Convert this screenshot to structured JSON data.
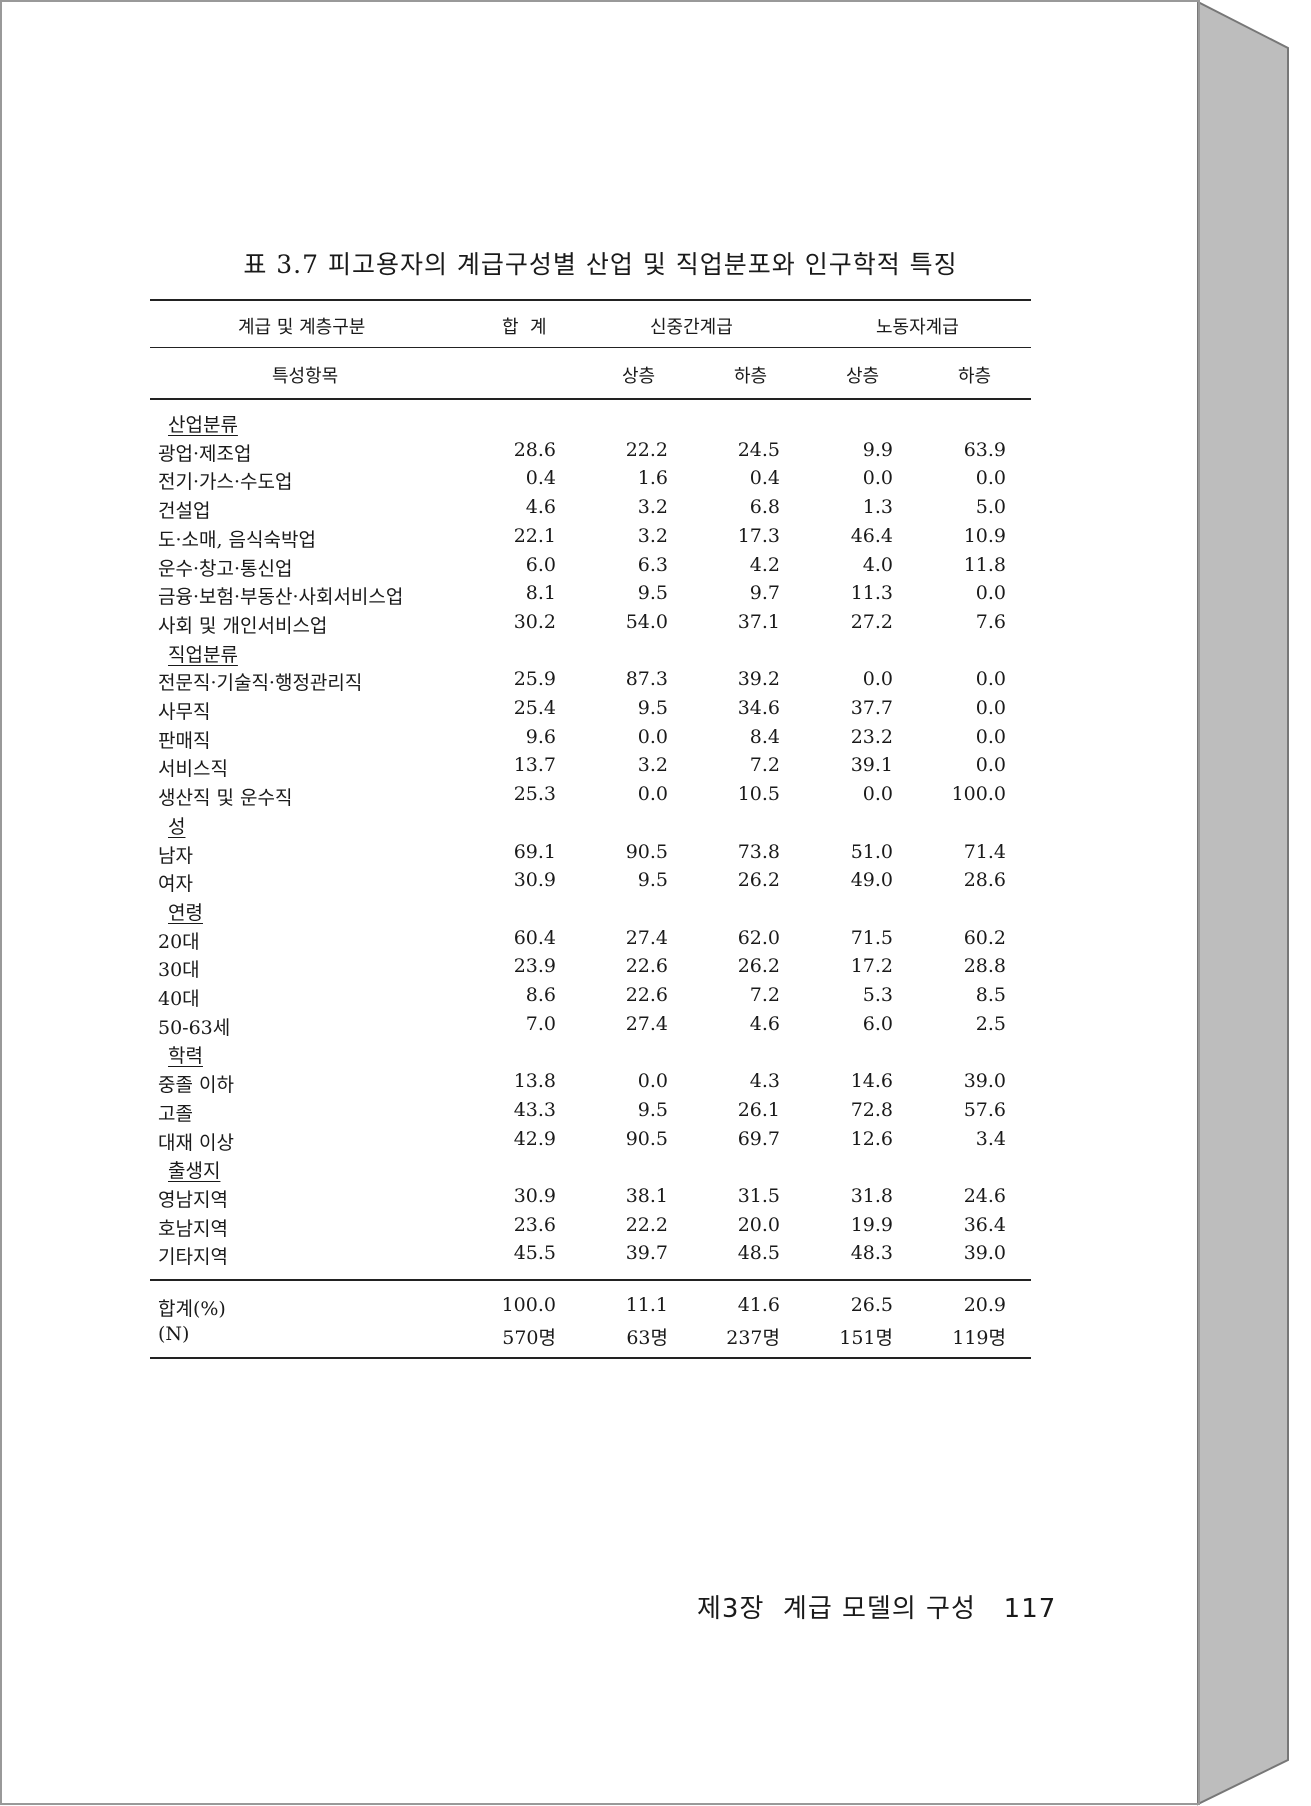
{
  "title": "표 3.7  피고용자의 계급구성별 산업 및 직업분포와 인구학적 특징",
  "header": {
    "row1": {
      "label": "계급 및 계층구분",
      "total": "합  계",
      "group1": "신중간계급",
      "group2": "노동자계급"
    },
    "row2": {
      "label": "특성항목",
      "sub": [
        "상층",
        "하층",
        "상층",
        "하층"
      ]
    }
  },
  "rows": [
    {
      "section": "산업분류"
    },
    {
      "label": "광업·제조업",
      "values": [
        "28.6",
        "22.2",
        "24.5",
        "9.9",
        "63.9"
      ]
    },
    {
      "label": "전기·가스·수도업",
      "values": [
        "0.4",
        "1.6",
        "0.4",
        "0.0",
        "0.0"
      ]
    },
    {
      "label": "건설업",
      "values": [
        "4.6",
        "3.2",
        "6.8",
        "1.3",
        "5.0"
      ]
    },
    {
      "label": "도·소매, 음식숙박업",
      "values": [
        "22.1",
        "3.2",
        "17.3",
        "46.4",
        "10.9"
      ]
    },
    {
      "label": "운수·창고·통신업",
      "values": [
        "6.0",
        "6.3",
        "4.2",
        "4.0",
        "11.8"
      ]
    },
    {
      "label": "금융·보험·부동산·사회서비스업",
      "values": [
        "8.1",
        "9.5",
        "9.7",
        "11.3",
        "0.0"
      ]
    },
    {
      "label": "사회 및 개인서비스업",
      "values": [
        "30.2",
        "54.0",
        "37.1",
        "27.2",
        "7.6"
      ]
    },
    {
      "section": "직업분류"
    },
    {
      "label": "전문직·기술직·행정관리직",
      "values": [
        "25.9",
        "87.3",
        "39.2",
        "0.0",
        "0.0"
      ]
    },
    {
      "label": "사무직",
      "values": [
        "25.4",
        "9.5",
        "34.6",
        "37.7",
        "0.0"
      ]
    },
    {
      "label": "판매직",
      "values": [
        "9.6",
        "0.0",
        "8.4",
        "23.2",
        "0.0"
      ]
    },
    {
      "label": "서비스직",
      "values": [
        "13.7",
        "3.2",
        "7.2",
        "39.1",
        "0.0"
      ]
    },
    {
      "label": "생산직 및 운수직",
      "values": [
        "25.3",
        "0.0",
        "10.5",
        "0.0",
        "100.0"
      ]
    },
    {
      "section": "성"
    },
    {
      "label": "남자",
      "values": [
        "69.1",
        "90.5",
        "73.8",
        "51.0",
        "71.4"
      ]
    },
    {
      "label": "여자",
      "values": [
        "30.9",
        "9.5",
        "26.2",
        "49.0",
        "28.6"
      ]
    },
    {
      "section": "연령"
    },
    {
      "label": "20대",
      "values": [
        "60.4",
        "27.4",
        "62.0",
        "71.5",
        "60.2"
      ]
    },
    {
      "label": "30대",
      "values": [
        "23.9",
        "22.6",
        "26.2",
        "17.2",
        "28.8"
      ]
    },
    {
      "label": "40대",
      "values": [
        "8.6",
        "22.6",
        "7.2",
        "5.3",
        "8.5"
      ]
    },
    {
      "label": "50-63세",
      "values": [
        "7.0",
        "27.4",
        "4.6",
        "6.0",
        "2.5"
      ]
    },
    {
      "section": "학력"
    },
    {
      "label": "중졸 이하",
      "values": [
        "13.8",
        "0.0",
        "4.3",
        "14.6",
        "39.0"
      ]
    },
    {
      "label": "고졸",
      "values": [
        "43.3",
        "9.5",
        "26.1",
        "72.8",
        "57.6"
      ]
    },
    {
      "label": "대재 이상",
      "values": [
        "42.9",
        "90.5",
        "69.7",
        "12.6",
        "3.4"
      ]
    },
    {
      "section": "출생지"
    },
    {
      "label": "영남지역",
      "values": [
        "30.9",
        "38.1",
        "31.5",
        "31.8",
        "24.6"
      ]
    },
    {
      "label": "호남지역",
      "values": [
        "23.6",
        "22.2",
        "20.0",
        "19.9",
        "36.4"
      ]
    },
    {
      "label": "기타지역",
      "values": [
        "45.5",
        "39.7",
        "48.5",
        "48.3",
        "39.0"
      ]
    }
  ],
  "totals": [
    {
      "label": "합계(%)",
      "values": [
        "100.0",
        "11.1",
        "41.6",
        "26.5",
        "20.9"
      ]
    },
    {
      "label": "(N)",
      "values": [
        "570명",
        "63명",
        "237명",
        "151명",
        "119명"
      ]
    }
  ],
  "footer": "제3장  계급 모델의 구성   117"
}
